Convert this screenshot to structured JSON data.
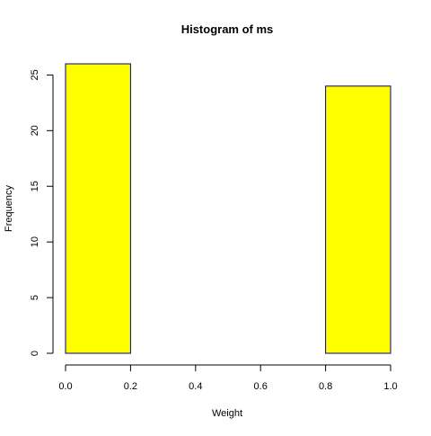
{
  "chart_data": {
    "type": "bar",
    "title": "Histogram of ms",
    "xlabel": "Weight",
    "ylabel": "Frequency",
    "bins": [
      {
        "start": 0.0,
        "end": 0.2,
        "count": 26
      },
      {
        "start": 0.2,
        "end": 0.4,
        "count": 0
      },
      {
        "start": 0.4,
        "end": 0.6,
        "count": 0
      },
      {
        "start": 0.6,
        "end": 0.8,
        "count": 0
      },
      {
        "start": 0.8,
        "end": 1.0,
        "count": 24
      }
    ],
    "xlim": [
      0,
      1
    ],
    "ylim": [
      0,
      26
    ],
    "x_ticks": [
      {
        "value": 0.0,
        "label": "0.0"
      },
      {
        "value": 0.2,
        "label": "0.2"
      },
      {
        "value": 0.4,
        "label": "0.4"
      },
      {
        "value": 0.6,
        "label": "0.6"
      },
      {
        "value": 0.8,
        "label": "0.8"
      },
      {
        "value": 1.0,
        "label": "1.0"
      }
    ],
    "y_ticks": [
      {
        "value": 0,
        "label": "0"
      },
      {
        "value": 5,
        "label": "5"
      },
      {
        "value": 10,
        "label": "10"
      },
      {
        "value": 15,
        "label": "15"
      },
      {
        "value": 20,
        "label": "20"
      },
      {
        "value": 25,
        "label": "25"
      }
    ],
    "grid": false,
    "legend": "none",
    "colors": {
      "bar_fill": "#ffff00",
      "bar_stroke": "#000080",
      "axis": "#000000"
    }
  }
}
